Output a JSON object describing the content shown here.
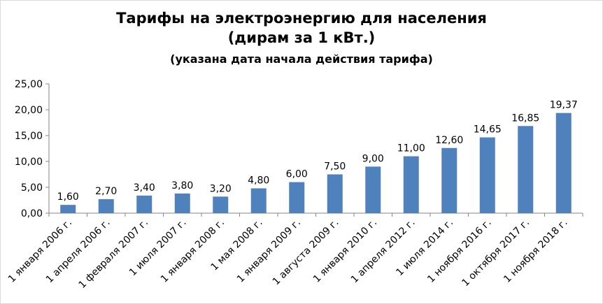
{
  "chart_data": {
    "type": "bar",
    "title": "Тарифы на электроэнергию для населения",
    "subtitle": "(дирам за 1 кВт.)",
    "note": "(указана дата начала действия тарифа)",
    "categories": [
      "1 января 2006 г.",
      "1 апреля 2006 г.",
      "1 февраля 2007 г.",
      "1 июля 2007 г.",
      "1 января 2008 г.",
      "1 мая 2008 г.",
      "1 января 2009 г.",
      "1 августа 2009 г.",
      "1 января 2010 г.",
      "1 апреля 2012 г.",
      "1 июля 2014 г.",
      "1 ноября 2016 г.",
      "1 октября 2017 г.",
      "1 ноября 2018 г."
    ],
    "values": [
      1.6,
      2.7,
      3.4,
      3.8,
      3.2,
      4.8,
      6.0,
      7.5,
      9.0,
      11.0,
      12.6,
      14.65,
      16.85,
      19.37
    ],
    "value_labels": [
      "1,60",
      "2,70",
      "3,40",
      "3,80",
      "3,20",
      "4,80",
      "6,00",
      "7,50",
      "9,00",
      "11,00",
      "12,60",
      "14,65",
      "16,85",
      "19,37"
    ],
    "yticks": [
      "0,00",
      "5,00",
      "10,00",
      "15,00",
      "20,00",
      "25,00"
    ],
    "ylim": [
      0,
      25
    ],
    "grid": false,
    "legend": "none",
    "bar_color": "#4f81bd",
    "axis_color": "#868686"
  }
}
